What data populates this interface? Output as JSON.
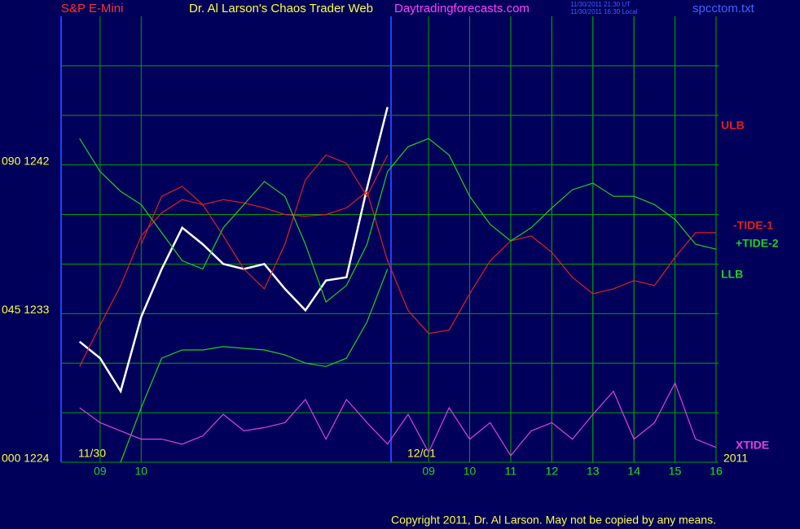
{
  "chart_data": {
    "type": "line",
    "header": {
      "symbol": "S&P E-Mini",
      "title": "Dr. Al Larson's Chaos Trader Web",
      "site": "Daytradingforecasts.com",
      "time_ut": "11/30/2011 21:30 UT",
      "time_local": "11/30/2011 16:30 Local",
      "file": "spcctom.txt"
    },
    "copyright": "Copyright 2011, Dr. Al Larson. May not be copied by any means.",
    "annotations": [
      "11/30",
      "12/01",
      "2011"
    ],
    "xlim": [
      0.05,
      16.06
    ],
    "ylim": [
      1224,
      1251
    ],
    "xticks": [
      {
        "value": 1,
        "label": "09"
      },
      {
        "value": 2,
        "label": "10"
      },
      11,
      12,
      13,
      14,
      15,
      16,
      {
        "value": 9,
        "label": "09"
      },
      {
        "value": 10,
        "label": "10"
      },
      {
        "value": 11,
        "label": "11"
      },
      {
        "value": 12,
        "label": "12"
      },
      {
        "value": 13,
        "label": "13"
      },
      {
        "value": 14,
        "label": "14"
      },
      {
        "value": 15,
        "label": "15"
      },
      {
        "value": 16,
        "label": "16"
      }
    ],
    "yticks": [
      {
        "value": 1224,
        "label": "000 1224"
      },
      {
        "value": 1233,
        "label": "045 1233"
      },
      {
        "value": 1242,
        "label": "090 1242"
      }
    ],
    "yminor": [
      1227,
      1230,
      1236,
      1239,
      1245,
      1248
    ],
    "grid": true,
    "x": [
      0.5,
      1,
      1.5,
      2,
      2.5,
      3,
      3.5,
      4,
      4.5,
      5,
      5.5,
      6,
      6.5,
      7,
      7.5,
      8,
      8.5,
      9,
      9.5,
      10,
      10.5,
      11,
      11.5,
      12,
      12.5,
      13,
      13.5,
      14,
      14.5,
      15,
      15.5,
      16
    ],
    "series": [
      {
        "color": "#ffffff",
        "values": [
          1231.3,
          1230.3,
          1228.3,
          1232.8,
          1235.7,
          1238.2,
          1237.2,
          1236.0,
          1235.7,
          1236.0,
          1234.5,
          1233.2,
          1235.0,
          1235.2,
          1240.6,
          1245.5,
          null,
          null,
          null,
          null,
          null,
          null,
          null,
          null,
          null,
          null,
          null,
          null,
          null,
          null,
          null,
          null
        ]
      },
      {
        "name": "ULB",
        "color": "#e02020",
        "values": [
          null,
          null,
          null,
          1237.2,
          1240.1,
          1240.7,
          1239.6,
          1237.7,
          1235.7,
          1234.5,
          1237.2,
          1241.1,
          1242.6,
          1242.1,
          1240.1,
          1242.6,
          null,
          null,
          null,
          null,
          null,
          null,
          null,
          null,
          null,
          null,
          null,
          null,
          null,
          null,
          null,
          null
        ]
      },
      {
        "name": "-TIDE-1",
        "color": "#e02020",
        "values": [
          1229.8,
          1232.3,
          1234.7,
          1237.7,
          1239.1,
          1239.9,
          1239.6,
          1239.9,
          1239.7,
          1239.4,
          1239.0,
          1238.9,
          1239.0,
          1239.4,
          1240.4,
          1236.2,
          1233.2,
          1231.8,
          1232.0,
          1234.2,
          1236.2,
          1237.4,
          1237.7,
          1236.7,
          1235.2,
          1234.2,
          1234.5,
          1235.0,
          1234.7,
          1236.4,
          1237.9,
          1237.9
        ]
      },
      {
        "name": "+TIDE-2",
        "color": "#20d020",
        "values": [
          1243.6,
          1241.6,
          1240.4,
          1239.6,
          1237.9,
          1236.2,
          1235.7,
          1238.2,
          1239.6,
          1241.0,
          1240.1,
          1237.2,
          1233.7,
          1234.7,
          1237.2,
          1241.6,
          1243.1,
          1243.6,
          1242.6,
          1240.1,
          1238.4,
          1237.4,
          1238.2,
          1239.4,
          1240.5,
          1240.9,
          1240.1,
          1240.1,
          1239.6,
          1238.7,
          1237.2,
          1236.9
        ]
      },
      {
        "name": "LLB",
        "color": "#20d020",
        "values": [
          null,
          null,
          1224.0,
          1227.3,
          1230.3,
          1230.8,
          1230.8,
          1231.0,
          1230.9,
          1230.8,
          1230.5,
          1230.0,
          1229.8,
          1230.3,
          1232.5,
          1235.7,
          null,
          null,
          null,
          null,
          null,
          null,
          null,
          null,
          null,
          null,
          null,
          null,
          null,
          null,
          null,
          null
        ]
      },
      {
        "name": "XTIDE",
        "color": "#e040e0",
        "values": [
          1227.3,
          1226.4,
          1225.9,
          1225.4,
          1225.4,
          1225.1,
          1225.6,
          1226.9,
          1225.9,
          1226.1,
          1226.4,
          1227.8,
          1225.4,
          1227.8,
          1226.4,
          1225.1,
          1226.9,
          1224.6,
          1227.3,
          1225.4,
          1226.4,
          1224.4,
          1225.9,
          1226.4,
          1225.4,
          1226.9,
          1228.3,
          1225.4,
          1226.4,
          1228.8,
          1225.4,
          1224.9
        ]
      }
    ]
  }
}
